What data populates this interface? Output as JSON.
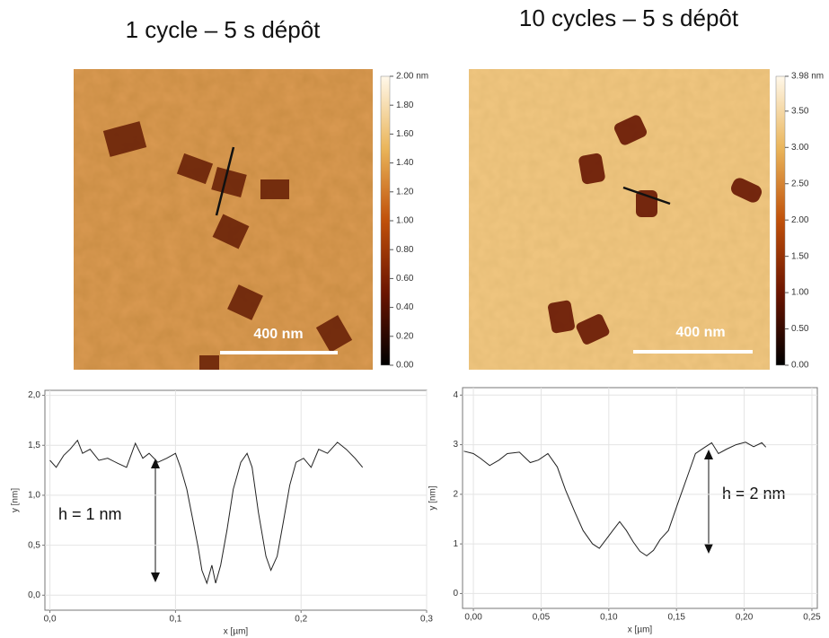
{
  "panels": [
    {
      "title": "1 cycle – 5 s dépôt",
      "scale_bar": "400 nm",
      "colorbar": {
        "lim": [
          0,
          2
        ],
        "ticks": [
          {
            "value": 0,
            "label": "0.00"
          },
          {
            "value": 0.2,
            "label": "0.20"
          },
          {
            "value": 0.4,
            "label": "0.40"
          },
          {
            "value": 0.6,
            "label": "0.60"
          },
          {
            "value": 0.8,
            "label": "0.80"
          },
          {
            "value": 1.0,
            "label": "1.00"
          },
          {
            "value": 1.2,
            "label": "1.20"
          },
          {
            "value": 1.4,
            "label": "1.40"
          },
          {
            "value": 1.6,
            "label": "1.60"
          },
          {
            "value": 1.8,
            "label": "1.80"
          },
          {
            "value": 2.0,
            "label": "2.00 nm"
          }
        ]
      }
    },
    {
      "title": "10 cycles – 5 s dépôt",
      "scale_bar": "400 nm",
      "colorbar": {
        "lim": [
          0,
          3.98
        ],
        "ticks": [
          {
            "value": 0,
            "label": "0.00"
          },
          {
            "value": 0.5,
            "label": "0.50"
          },
          {
            "value": 1.0,
            "label": "1.00"
          },
          {
            "value": 1.5,
            "label": "1.50"
          },
          {
            "value": 2.0,
            "label": "2.00"
          },
          {
            "value": 2.5,
            "label": "2.50"
          },
          {
            "value": 3.0,
            "label": "3.00"
          },
          {
            "value": 3.5,
            "label": "3.50"
          },
          {
            "value": 3.98,
            "label": "3.98 nm"
          }
        ]
      }
    }
  ],
  "chart_data": [
    {
      "type": "line",
      "xlabel": "x [µm]",
      "ylabel": "y [nm]",
      "annotation": "h = 1 nm",
      "color": "#222",
      "grid": true,
      "xlim": [
        -0.004,
        0.3
      ],
      "ylim": [
        -0.15,
        2.05
      ],
      "xticks": [
        {
          "value": 0,
          "label": "0,0"
        },
        {
          "value": 0.1,
          "label": "0,1"
        },
        {
          "value": 0.2,
          "label": "0,2"
        },
        {
          "value": 0.3,
          "label": "0,3"
        }
      ],
      "yticks": [
        {
          "value": 0,
          "label": "0,0"
        },
        {
          "value": 0.5,
          "label": "0,5"
        },
        {
          "value": 1.0,
          "label": "1,0"
        },
        {
          "value": 1.5,
          "label": "1,5"
        },
        {
          "value": 2.0,
          "label": "2,0"
        }
      ],
      "x": [
        0,
        0.005,
        0.011,
        0.016,
        0.022,
        0.026,
        0.032,
        0.039,
        0.046,
        0.054,
        0.061,
        0.068,
        0.074,
        0.079,
        0.086,
        0.093,
        0.1,
        0.104,
        0.109,
        0.114,
        0.118,
        0.121,
        0.125,
        0.129,
        0.132,
        0.136,
        0.141,
        0.146,
        0.152,
        0.157,
        0.161,
        0.166,
        0.172,
        0.176,
        0.181,
        0.186,
        0.191,
        0.196,
        0.202,
        0.208,
        0.214,
        0.221,
        0.229,
        0.236,
        0.243,
        0.249
      ],
      "values": [
        1.35,
        1.28,
        1.4,
        1.46,
        1.55,
        1.42,
        1.46,
        1.35,
        1.37,
        1.32,
        1.28,
        1.52,
        1.37,
        1.42,
        1.33,
        1.37,
        1.42,
        1.28,
        1.06,
        0.74,
        0.48,
        0.25,
        0.12,
        0.3,
        0.12,
        0.3,
        0.65,
        1.06,
        1.33,
        1.42,
        1.28,
        0.83,
        0.39,
        0.25,
        0.39,
        0.74,
        1.1,
        1.33,
        1.37,
        1.28,
        1.46,
        1.42,
        1.53,
        1.46,
        1.37,
        1.28
      ]
    },
    {
      "type": "line",
      "xlabel": "x [µm]",
      "ylabel": "y [nm]",
      "annotation": "h = 2 nm",
      "color": "#222",
      "grid": true,
      "xlim": [
        -0.008,
        0.254
      ],
      "ylim": [
        -0.3,
        4.15
      ],
      "xticks": [
        {
          "value": 0,
          "label": "0,00"
        },
        {
          "value": 0.05,
          "label": "0,05"
        },
        {
          "value": 0.1,
          "label": "0,10"
        },
        {
          "value": 0.15,
          "label": "0,15"
        },
        {
          "value": 0.2,
          "label": "0,20"
        },
        {
          "value": 0.25,
          "label": "0,25"
        }
      ],
      "yticks": [
        0,
        1,
        2,
        3,
        4
      ],
      "x": [
        -0.007,
        0,
        0.005,
        0.012,
        0.019,
        0.025,
        0.034,
        0.042,
        0.048,
        0.055,
        0.062,
        0.068,
        0.075,
        0.081,
        0.088,
        0.093,
        0.098,
        0.103,
        0.108,
        0.113,
        0.118,
        0.123,
        0.128,
        0.133,
        0.138,
        0.144,
        0.151,
        0.158,
        0.164,
        0.171,
        0.176,
        0.181,
        0.187,
        0.194,
        0.201,
        0.207,
        0.213,
        0.216
      ],
      "values": [
        2.87,
        2.82,
        2.73,
        2.58,
        2.69,
        2.82,
        2.85,
        2.64,
        2.69,
        2.82,
        2.55,
        2.09,
        1.64,
        1.27,
        1.0,
        0.91,
        1.09,
        1.27,
        1.45,
        1.27,
        1.04,
        0.85,
        0.76,
        0.87,
        1.09,
        1.27,
        1.82,
        2.36,
        2.82,
        2.95,
        3.04,
        2.82,
        2.91,
        3.0,
        3.05,
        2.96,
        3.04,
        2.95
      ]
    }
  ]
}
